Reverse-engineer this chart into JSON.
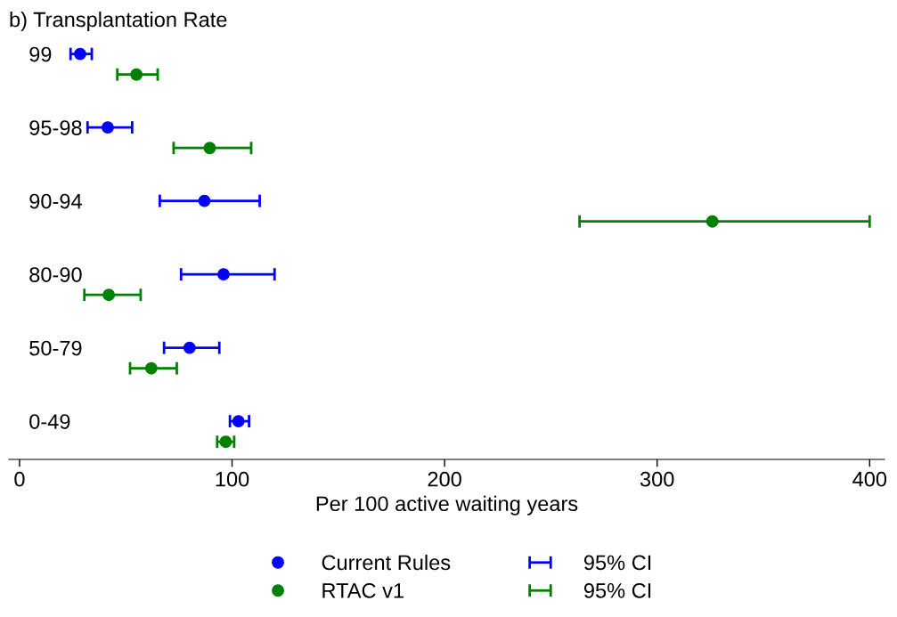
{
  "chart_data": {
    "type": "scatter",
    "orientation": "horizontal",
    "title": "b) Transplantation Rate",
    "xlabel": "Per 100 active waiting years",
    "categories": [
      "99",
      "95-98",
      "90-94",
      "80-90",
      "50-79",
      "0-49"
    ],
    "series": [
      {
        "name": "Current Rules",
        "color": "#0000ff",
        "values": [
          28.5,
          41.5,
          87,
          96,
          80,
          103
        ],
        "errors": [
          [
            24,
            34
          ],
          [
            32,
            53
          ],
          [
            66,
            113
          ],
          [
            76,
            120
          ],
          [
            68,
            94
          ],
          [
            99,
            108
          ]
        ]
      },
      {
        "name": "RTAC v1",
        "color": "#008000",
        "values": [
          55,
          89.5,
          326,
          42,
          62,
          97
        ],
        "errors": [
          [
            46,
            65
          ],
          [
            72.5,
            109
          ],
          [
            263.5,
            400
          ],
          [
            30.5,
            57
          ],
          [
            52,
            74
          ],
          [
            93,
            101
          ]
        ]
      }
    ],
    "annotations": [
      "95% CI",
      "95% CI"
    ],
    "xlim": [
      -5,
      407
    ],
    "xticks": [
      0,
      100,
      200,
      300,
      400
    ],
    "marker": "circle",
    "legend": "bottom",
    "grid": false
  }
}
